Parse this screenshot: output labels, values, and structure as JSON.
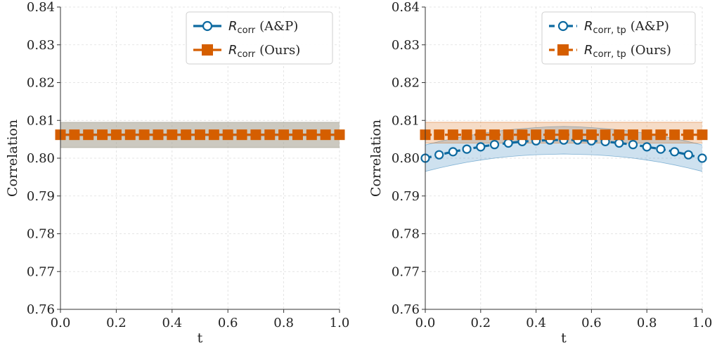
{
  "colors": {
    "blue": "#1f77b4",
    "blueDark": "#0e6aa0",
    "orange": "#d55e00",
    "bandGray": "#a8a395",
    "grid": "#dddddd"
  },
  "chart_data": [
    {
      "type": "line",
      "panel": "left",
      "xlabel": "t",
      "ylabel": "Correlation",
      "xlim": [
        0.0,
        1.0
      ],
      "ylim": [
        0.76,
        0.84
      ],
      "xticks": [
        "0.0",
        "0.2",
        "0.4",
        "0.6",
        "0.8",
        "1.0"
      ],
      "yticks": [
        "0.76",
        "0.77",
        "0.78",
        "0.79",
        "0.80",
        "0.81",
        "0.82",
        "0.83",
        "0.84"
      ],
      "grid": true,
      "legend_position": "top-right",
      "x": [
        0.0,
        0.05,
        0.1,
        0.15,
        0.2,
        0.25,
        0.3,
        0.35,
        0.4,
        0.45,
        0.5,
        0.55,
        0.6,
        0.65,
        0.7,
        0.75,
        0.8,
        0.85,
        0.9,
        0.95,
        1.0
      ],
      "series": [
        {
          "sym": "R",
          "sub": "corr",
          "suffix": "(A&P)",
          "style": "solid-circle",
          "values": [
            0.8062,
            0.8062,
            0.8062,
            0.8062,
            0.8062,
            0.8062,
            0.8062,
            0.8062,
            0.8062,
            0.8062,
            0.8062,
            0.8062,
            0.8062,
            0.8062,
            0.8062,
            0.8062,
            0.8062,
            0.8062,
            0.8062,
            0.8062,
            0.8062
          ],
          "band_lower": [
            0.8028,
            0.8028,
            0.8028,
            0.8028,
            0.8028,
            0.8028,
            0.8028,
            0.8028,
            0.8028,
            0.8028,
            0.8028,
            0.8028,
            0.8028,
            0.8028,
            0.8028,
            0.8028,
            0.8028,
            0.8028,
            0.8028,
            0.8028,
            0.8028
          ],
          "band_upper": [
            0.8095,
            0.8095,
            0.8095,
            0.8095,
            0.8095,
            0.8095,
            0.8095,
            0.8095,
            0.8095,
            0.8095,
            0.8095,
            0.8095,
            0.8095,
            0.8095,
            0.8095,
            0.8095,
            0.8095,
            0.8095,
            0.8095,
            0.8095,
            0.8095
          ]
        },
        {
          "sym": "R",
          "sub": "corr",
          "suffix": "(Ours)",
          "style": "solid-square",
          "values": [
            0.8062,
            0.8062,
            0.8062,
            0.8062,
            0.8062,
            0.8062,
            0.8062,
            0.8062,
            0.8062,
            0.8062,
            0.8062,
            0.8062,
            0.8062,
            0.8062,
            0.8062,
            0.8062,
            0.8062,
            0.8062,
            0.8062,
            0.8062,
            0.8062
          ],
          "band_lower": [
            0.8028,
            0.8028,
            0.8028,
            0.8028,
            0.8028,
            0.8028,
            0.8028,
            0.8028,
            0.8028,
            0.8028,
            0.8028,
            0.8028,
            0.8028,
            0.8028,
            0.8028,
            0.8028,
            0.8028,
            0.8028,
            0.8028,
            0.8028,
            0.8028
          ],
          "band_upper": [
            0.8095,
            0.8095,
            0.8095,
            0.8095,
            0.8095,
            0.8095,
            0.8095,
            0.8095,
            0.8095,
            0.8095,
            0.8095,
            0.8095,
            0.8095,
            0.8095,
            0.8095,
            0.8095,
            0.8095,
            0.8095,
            0.8095,
            0.8095,
            0.8095
          ]
        }
      ]
    },
    {
      "type": "line",
      "panel": "right",
      "xlabel": "t",
      "ylabel": "Correlation",
      "xlim": [
        0.0,
        1.0
      ],
      "ylim": [
        0.76,
        0.84
      ],
      "xticks": [
        "0.0",
        "0.2",
        "0.4",
        "0.6",
        "0.8",
        "1.0"
      ],
      "yticks": [
        "0.76",
        "0.77",
        "0.78",
        "0.79",
        "0.80",
        "0.81",
        "0.82",
        "0.83",
        "0.84"
      ],
      "grid": true,
      "legend_position": "top-right",
      "x": [
        0.0,
        0.05,
        0.1,
        0.15,
        0.2,
        0.25,
        0.3,
        0.35,
        0.4,
        0.45,
        0.5,
        0.55,
        0.6,
        0.65,
        0.7,
        0.75,
        0.8,
        0.85,
        0.9,
        0.95,
        1.0
      ],
      "series": [
        {
          "sym": "R",
          "sub": "corr, tp",
          "suffix": "(A&P)",
          "style": "dashed-circle",
          "values": [
            0.8,
            0.8009,
            0.8017,
            0.8024,
            0.803,
            0.8036,
            0.804,
            0.8044,
            0.8046,
            0.8048,
            0.8048,
            0.8048,
            0.8046,
            0.8044,
            0.804,
            0.8036,
            0.803,
            0.8024,
            0.8017,
            0.8009,
            0.8
          ],
          "band_lower": [
            0.7965,
            0.7974,
            0.7982,
            0.7989,
            0.7995,
            0.8,
            0.8004,
            0.8007,
            0.8009,
            0.801,
            0.8011,
            0.801,
            0.8009,
            0.8007,
            0.8004,
            0.8,
            0.7995,
            0.7989,
            0.7982,
            0.7974,
            0.7965
          ],
          "band_upper": [
            0.8035,
            0.8044,
            0.8052,
            0.8059,
            0.8065,
            0.8071,
            0.8075,
            0.8078,
            0.8081,
            0.8083,
            0.8084,
            0.8083,
            0.8081,
            0.8078,
            0.8075,
            0.8071,
            0.8065,
            0.8059,
            0.8052,
            0.8044,
            0.8035
          ]
        },
        {
          "sym": "R",
          "sub": "corr, tp",
          "suffix": "(Ours)",
          "style": "dashed-square",
          "values": [
            0.8062,
            0.8062,
            0.8062,
            0.8062,
            0.8062,
            0.8062,
            0.8062,
            0.8062,
            0.8062,
            0.8062,
            0.8062,
            0.8062,
            0.8062,
            0.8062,
            0.8062,
            0.8062,
            0.8062,
            0.8062,
            0.8062,
            0.8062,
            0.8062
          ],
          "band_lower": [
            0.804,
            0.804,
            0.804,
            0.804,
            0.804,
            0.804,
            0.804,
            0.804,
            0.804,
            0.804,
            0.804,
            0.804,
            0.804,
            0.804,
            0.804,
            0.804,
            0.804,
            0.804,
            0.804,
            0.804,
            0.804
          ],
          "band_upper": [
            0.8095,
            0.8095,
            0.8095,
            0.8095,
            0.8095,
            0.8095,
            0.8095,
            0.8095,
            0.8095,
            0.8095,
            0.8095,
            0.8095,
            0.8095,
            0.8095,
            0.8095,
            0.8095,
            0.8095,
            0.8095,
            0.8095,
            0.8095,
            0.8095
          ]
        }
      ]
    }
  ]
}
